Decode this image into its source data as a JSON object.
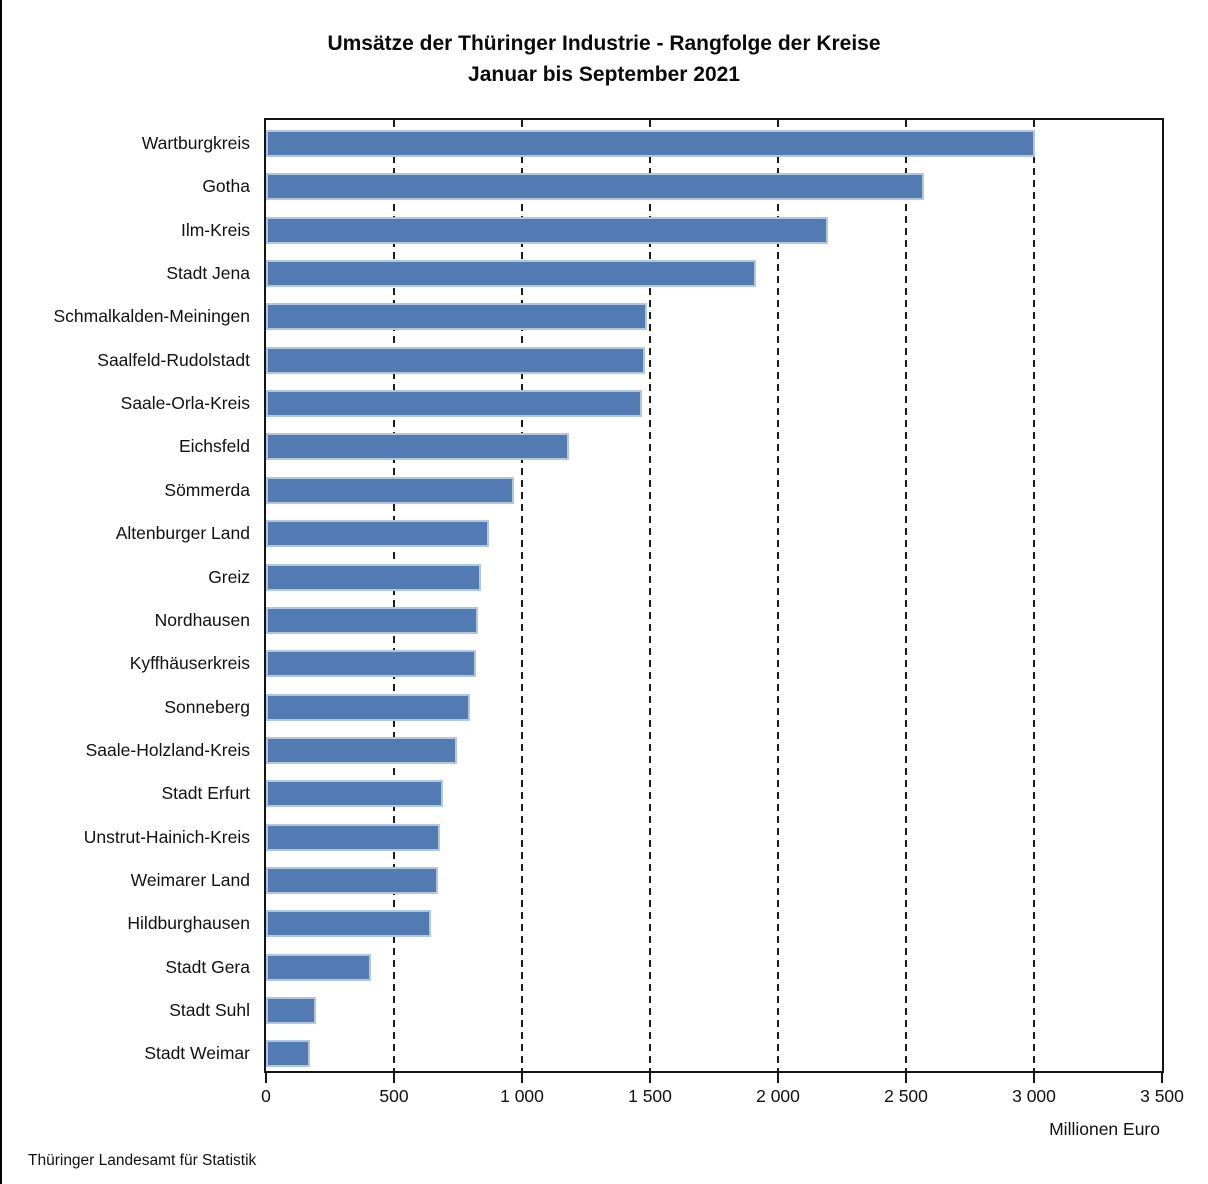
{
  "title": {
    "line1": "Umsätze der Thüringer Industrie - Rangfolge der Kreise",
    "line2": "Januar bis September 2021"
  },
  "axis": {
    "unit_label": "Millionen Euro"
  },
  "footer": {
    "source": "Thüringer Landesamt für Statistik"
  },
  "colors": {
    "bar_fill": "#527BB4",
    "bar_border": "#B2C6E0",
    "frame": "#151515"
  },
  "chart_data": {
    "type": "bar",
    "orientation": "horizontal",
    "title": "Umsätze der Thüringer Industrie - Rangfolge der Kreise",
    "subtitle": "Januar bis September 2021",
    "xlabel": "Millionen Euro",
    "ylabel": "",
    "xlim": [
      0,
      3500
    ],
    "grid": "vertical-dashed",
    "legend": "none",
    "x_ticks": [
      0,
      500,
      1000,
      1500,
      2000,
      2500,
      3000,
      3500
    ],
    "x_tick_labels": [
      "0",
      "500",
      "1 000",
      "1 500",
      "2 000",
      "2 500",
      "3 000",
      "3 500"
    ],
    "categories": [
      "Wartburgkreis",
      "Gotha",
      "Ilm-Kreis",
      "Stadt Jena",
      "Schmalkalden-Meiningen",
      "Saalfeld-Rudolstadt",
      "Saale-Orla-Kreis",
      "Eichsfeld",
      "Sömmerda",
      "Altenburger Land",
      "Greiz",
      "Nordhausen",
      "Kyffhäuserkreis",
      "Sonneberg",
      "Saale-Holzland-Kreis",
      "Stadt Erfurt",
      "Unstrut-Hainich-Kreis",
      "Weimarer Land",
      "Hildburghausen",
      "Stadt Gera",
      "Stadt Suhl",
      "Stadt Weimar"
    ],
    "values": [
      3005,
      2570,
      2195,
      1915,
      1490,
      1480,
      1470,
      1185,
      970,
      870,
      840,
      830,
      820,
      795,
      745,
      690,
      678,
      673,
      645,
      412,
      196,
      170
    ]
  }
}
